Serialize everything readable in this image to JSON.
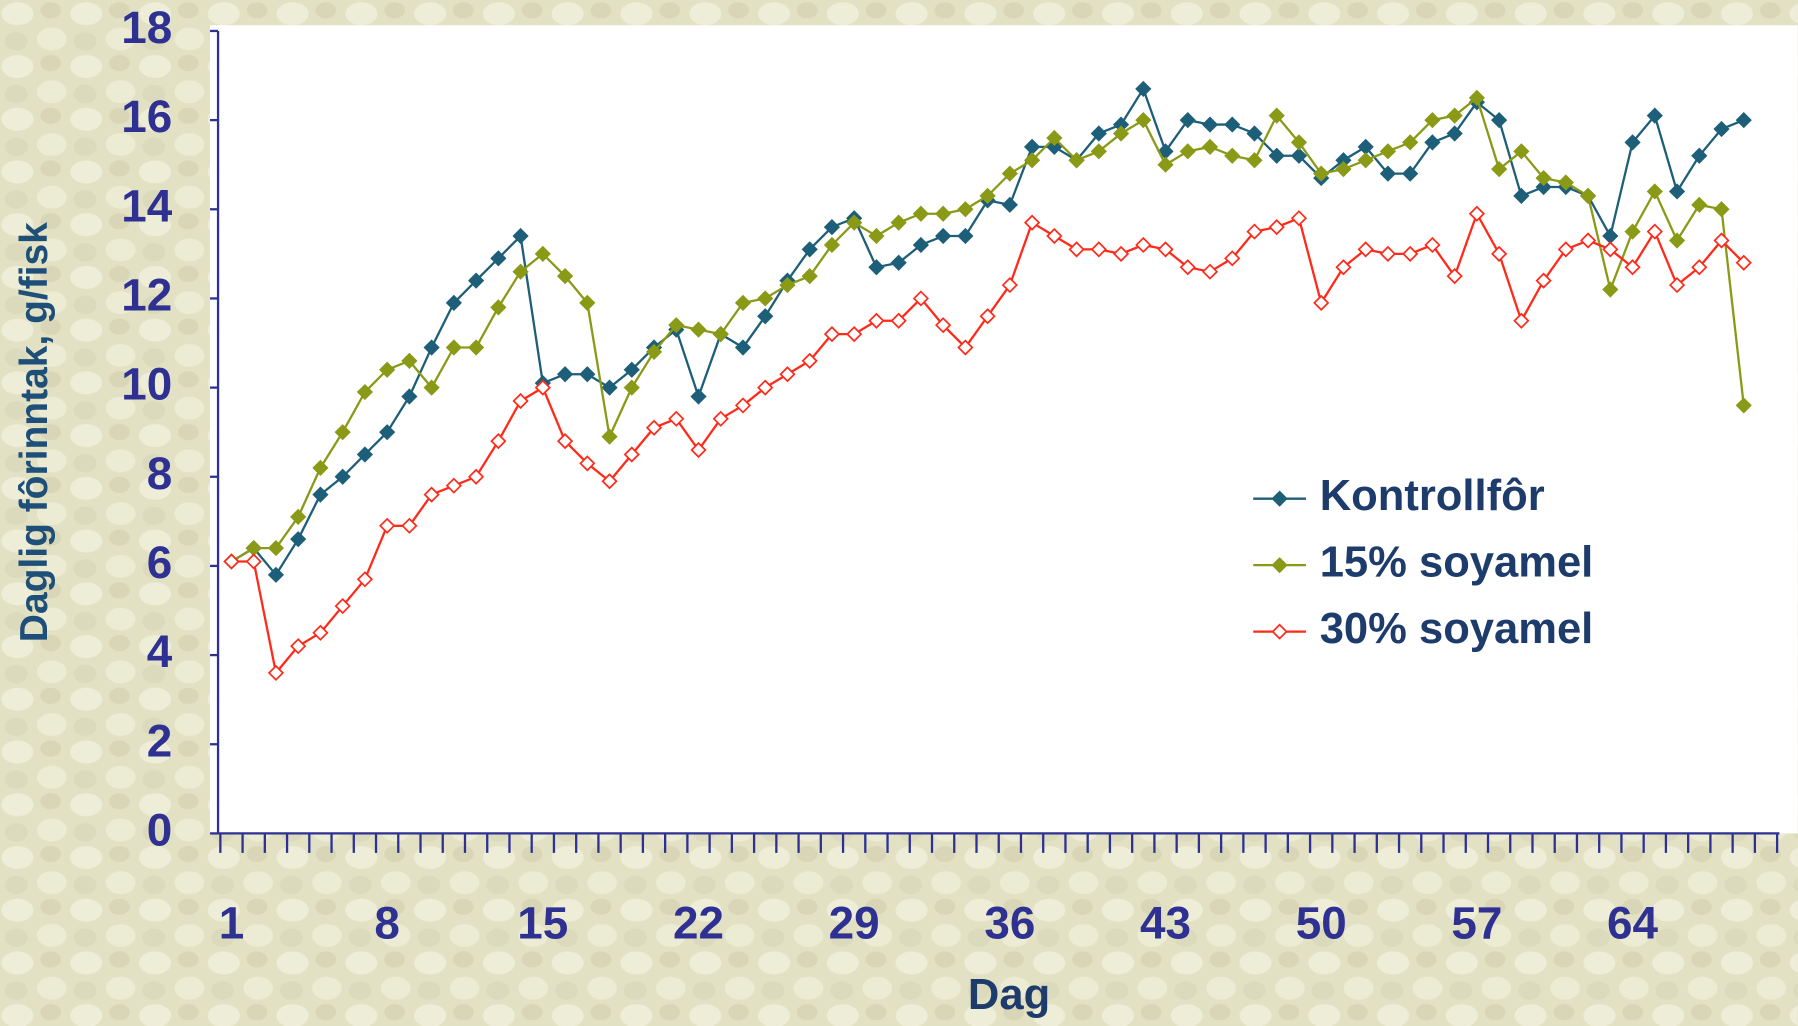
{
  "chart_data": {
    "type": "line",
    "x_label": "Dag",
    "y_label": "Daglig fôrinntak, g/fisk",
    "categories": [
      "1",
      null,
      null,
      null,
      null,
      null,
      null,
      "8",
      null,
      null,
      null,
      null,
      null,
      null,
      "15",
      null,
      null,
      null,
      null,
      null,
      null,
      "22",
      null,
      null,
      null,
      null,
      null,
      null,
      "29",
      null,
      null,
      null,
      null,
      null,
      null,
      "36",
      null,
      null,
      null,
      null,
      null,
      null,
      "43",
      null,
      null,
      null,
      null,
      null,
      null,
      "50",
      null,
      null,
      null,
      null,
      null,
      null,
      "57",
      null,
      null,
      null,
      null,
      null,
      null,
      "64",
      null,
      null,
      null,
      null,
      null,
      null
    ],
    "ylim": [
      0,
      18
    ],
    "yticks": [
      0,
      2,
      4,
      6,
      8,
      10,
      12,
      14,
      16,
      18
    ],
    "legend": "right",
    "series": [
      {
        "name": "Kontrollfôr",
        "color": "#1d5e78",
        "marker": "filled",
        "values": [
          6.1,
          6.4,
          5.8,
          6.6,
          7.6,
          8.0,
          8.5,
          9.0,
          9.8,
          10.9,
          11.9,
          12.4,
          12.9,
          13.4,
          10.1,
          10.3,
          10.3,
          10.0,
          10.4,
          10.9,
          11.3,
          9.8,
          11.2,
          10.9,
          11.6,
          12.4,
          13.1,
          13.6,
          13.8,
          12.7,
          12.8,
          13.2,
          13.4,
          13.4,
          14.2,
          14.1,
          15.4,
          15.4,
          15.1,
          15.7,
          15.9,
          16.7,
          15.3,
          16.0,
          15.9,
          15.9,
          15.7,
          15.2,
          15.2,
          14.7,
          15.1,
          15.4,
          14.8,
          14.8,
          15.5,
          15.7,
          16.4,
          16.0,
          14.3,
          14.5,
          14.5,
          14.3,
          13.4,
          15.5,
          16.1,
          14.4,
          15.2,
          15.8,
          16.0,
          null
        ]
      },
      {
        "name": "15% soyamel",
        "color": "#8a9a16",
        "marker": "filled",
        "values": [
          6.1,
          6.4,
          6.4,
          7.1,
          8.2,
          9.0,
          9.9,
          10.4,
          10.6,
          10.0,
          10.9,
          10.9,
          11.8,
          12.6,
          13.0,
          12.5,
          11.9,
          8.9,
          10.0,
          10.8,
          11.4,
          11.3,
          11.2,
          11.9,
          12.0,
          12.3,
          12.5,
          13.2,
          13.7,
          13.4,
          13.7,
          13.9,
          13.9,
          14.0,
          14.3,
          14.8,
          15.1,
          15.6,
          15.1,
          15.3,
          15.7,
          16.0,
          15.0,
          15.3,
          15.4,
          15.2,
          15.1,
          16.1,
          15.5,
          14.8,
          14.9,
          15.1,
          15.3,
          15.5,
          16.0,
          16.1,
          16.5,
          14.9,
          15.3,
          14.7,
          14.6,
          14.3,
          12.2,
          13.5,
          14.4,
          13.3,
          14.1,
          14.0,
          9.6,
          null
        ]
      },
      {
        "name": "30% soyamel",
        "color": "#ff2a1a",
        "marker": "hollow",
        "values": [
          6.1,
          6.1,
          3.6,
          4.2,
          4.5,
          5.1,
          5.7,
          6.9,
          6.9,
          7.6,
          7.8,
          8.0,
          8.8,
          9.7,
          10.0,
          8.8,
          8.3,
          7.9,
          8.5,
          9.1,
          9.3,
          8.6,
          9.3,
          9.6,
          10.0,
          10.3,
          10.6,
          11.2,
          11.2,
          11.5,
          11.5,
          12.0,
          11.4,
          10.9,
          11.6,
          12.3,
          13.7,
          13.4,
          13.1,
          13.1,
          13.0,
          13.2,
          13.1,
          12.7,
          12.6,
          12.9,
          13.5,
          13.6,
          13.8,
          11.9,
          12.7,
          13.1,
          13.0,
          13.0,
          13.2,
          12.5,
          13.9,
          13.0,
          11.5,
          12.4,
          13.1,
          13.3,
          13.1,
          12.7,
          13.5,
          12.3,
          12.7,
          13.3,
          12.8,
          null
        ]
      }
    ]
  }
}
